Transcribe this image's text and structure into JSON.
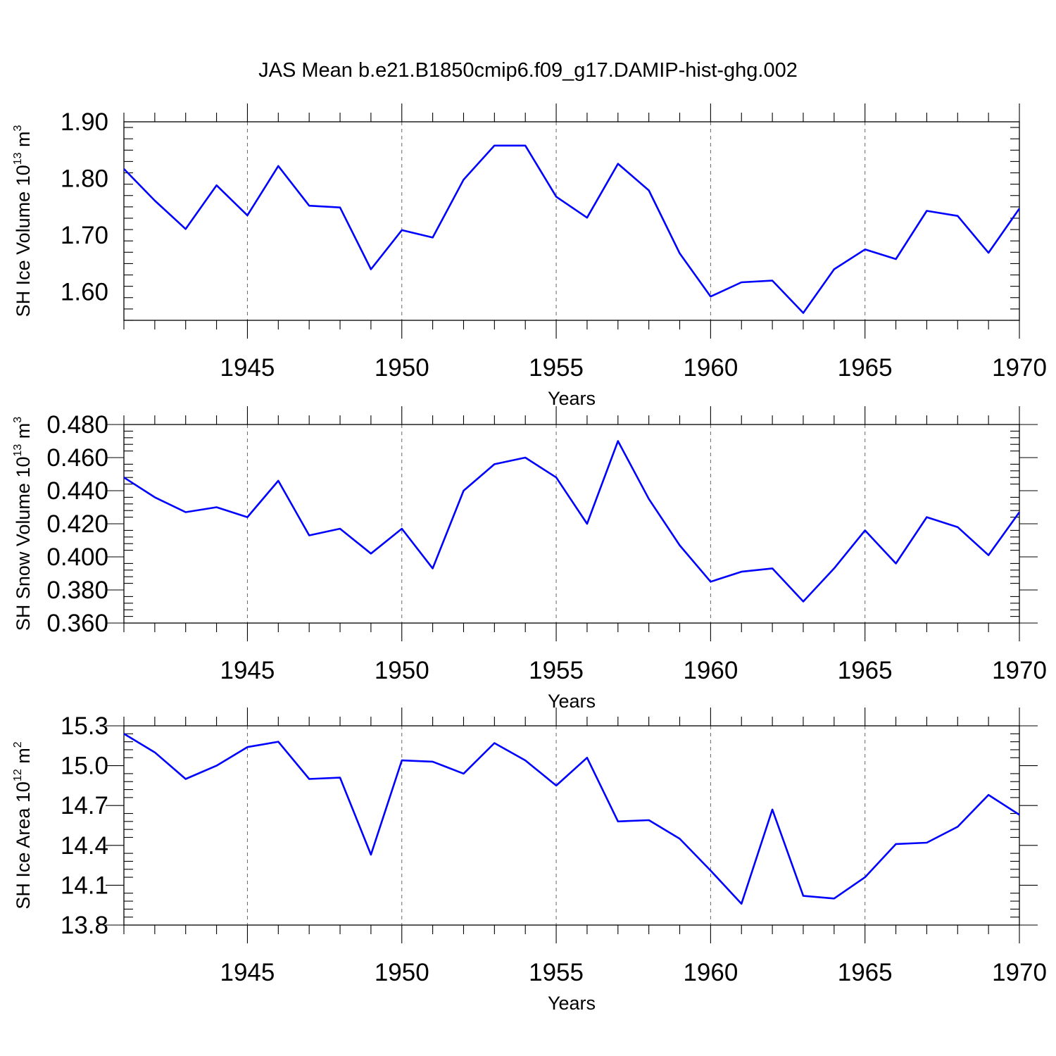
{
  "title": "JAS Mean b.e21.B1850cmip6.f09_g17.DAMIP-hist-ghg.002",
  "colors": {
    "line": "#0000ff",
    "axis": "#000000",
    "grid": "#666666"
  },
  "chart_data": [
    {
      "type": "line",
      "name": "ice-volume",
      "ylabel_base": "SH Ice Volume 10",
      "ylabel_exp": "13",
      "ylabel_unit": " m",
      "ylabel_unit_exp": "3",
      "xlabel": "Years",
      "xlim": [
        1941,
        1970
      ],
      "ylim": [
        1.55,
        1.9
      ],
      "yticks": [
        1.6,
        1.7,
        1.8,
        1.9
      ],
      "ytick_labels": [
        "1.60",
        "1.70",
        "1.80",
        "1.90"
      ],
      "xticks": [
        1945,
        1950,
        1955,
        1960,
        1965,
        1970
      ],
      "xtick_labels": [
        "1945",
        "1950",
        "1955",
        "1960",
        "1965",
        "1970"
      ],
      "grid": "dashed vertical at major x ticks",
      "x": [
        1941,
        1942,
        1943,
        1944,
        1945,
        1946,
        1947,
        1948,
        1949,
        1950,
        1951,
        1952,
        1953,
        1954,
        1955,
        1956,
        1957,
        1958,
        1959,
        1960,
        1961,
        1962,
        1963,
        1964,
        1965,
        1966,
        1967,
        1968,
        1969,
        1970
      ],
      "values": [
        1.817,
        1.761,
        1.711,
        1.788,
        1.735,
        1.822,
        1.752,
        1.749,
        1.64,
        1.709,
        1.696,
        1.798,
        1.858,
        1.858,
        1.768,
        1.731,
        1.826,
        1.779,
        1.668,
        1.592,
        1.617,
        1.62,
        1.563,
        1.64,
        1.675,
        1.658,
        1.743,
        1.734,
        1.669,
        1.747
      ]
    },
    {
      "type": "line",
      "name": "snow-volume",
      "ylabel_base": "SH Snow Volume 10",
      "ylabel_exp": "13",
      "ylabel_unit": " m",
      "ylabel_unit_exp": "3",
      "xlabel": "Years",
      "xlim": [
        1941,
        1970
      ],
      "ylim": [
        0.36,
        0.48
      ],
      "yticks": [
        0.36,
        0.38,
        0.4,
        0.42,
        0.44,
        0.46,
        0.48
      ],
      "ytick_labels": [
        "0.360",
        "0.380",
        "0.400",
        "0.420",
        "0.440",
        "0.460",
        "0.480"
      ],
      "xticks": [
        1945,
        1950,
        1955,
        1960,
        1965,
        1970
      ],
      "xtick_labels": [
        "1945",
        "1950",
        "1955",
        "1960",
        "1965",
        "1970"
      ],
      "grid": "dashed vertical at major x ticks",
      "x": [
        1941,
        1942,
        1943,
        1944,
        1945,
        1946,
        1947,
        1948,
        1949,
        1950,
        1951,
        1952,
        1953,
        1954,
        1955,
        1956,
        1957,
        1958,
        1959,
        1960,
        1961,
        1962,
        1963,
        1964,
        1965,
        1966,
        1967,
        1968,
        1969,
        1970
      ],
      "values": [
        0.448,
        0.436,
        0.427,
        0.43,
        0.424,
        0.446,
        0.413,
        0.417,
        0.402,
        0.417,
        0.393,
        0.44,
        0.456,
        0.46,
        0.448,
        0.42,
        0.47,
        0.435,
        0.407,
        0.385,
        0.391,
        0.393,
        0.373,
        0.393,
        0.416,
        0.396,
        0.424,
        0.418,
        0.401,
        0.427
      ]
    },
    {
      "type": "line",
      "name": "ice-area",
      "ylabel_base": "SH Ice Area 10",
      "ylabel_exp": "12",
      "ylabel_unit": " m",
      "ylabel_unit_exp": "2",
      "xlabel": "Years",
      "xlim": [
        1941,
        1970
      ],
      "ylim": [
        13.8,
        15.3
      ],
      "yticks": [
        13.8,
        14.1,
        14.4,
        14.7,
        15.0,
        15.3
      ],
      "ytick_labels": [
        "13.8",
        "14.1",
        "14.4",
        "14.7",
        "15.0",
        "15.3"
      ],
      "xticks": [
        1945,
        1950,
        1955,
        1960,
        1965,
        1970
      ],
      "xtick_labels": [
        "1945",
        "1950",
        "1955",
        "1960",
        "1965",
        "1970"
      ],
      "grid": "dashed vertical at major x ticks",
      "x": [
        1941,
        1942,
        1943,
        1944,
        1945,
        1946,
        1947,
        1948,
        1949,
        1950,
        1951,
        1952,
        1953,
        1954,
        1955,
        1956,
        1957,
        1958,
        1959,
        1960,
        1961,
        1962,
        1963,
        1964,
        1965,
        1966,
        1967,
        1968,
        1969,
        1970
      ],
      "values": [
        15.24,
        15.1,
        14.9,
        15.0,
        15.14,
        15.18,
        14.9,
        14.91,
        14.33,
        15.04,
        15.03,
        14.94,
        15.17,
        15.04,
        14.85,
        15.06,
        14.58,
        14.59,
        14.45,
        14.21,
        13.96,
        14.67,
        14.02,
        14.0,
        14.16,
        14.41,
        14.42,
        14.54,
        14.78,
        14.63
      ]
    }
  ]
}
